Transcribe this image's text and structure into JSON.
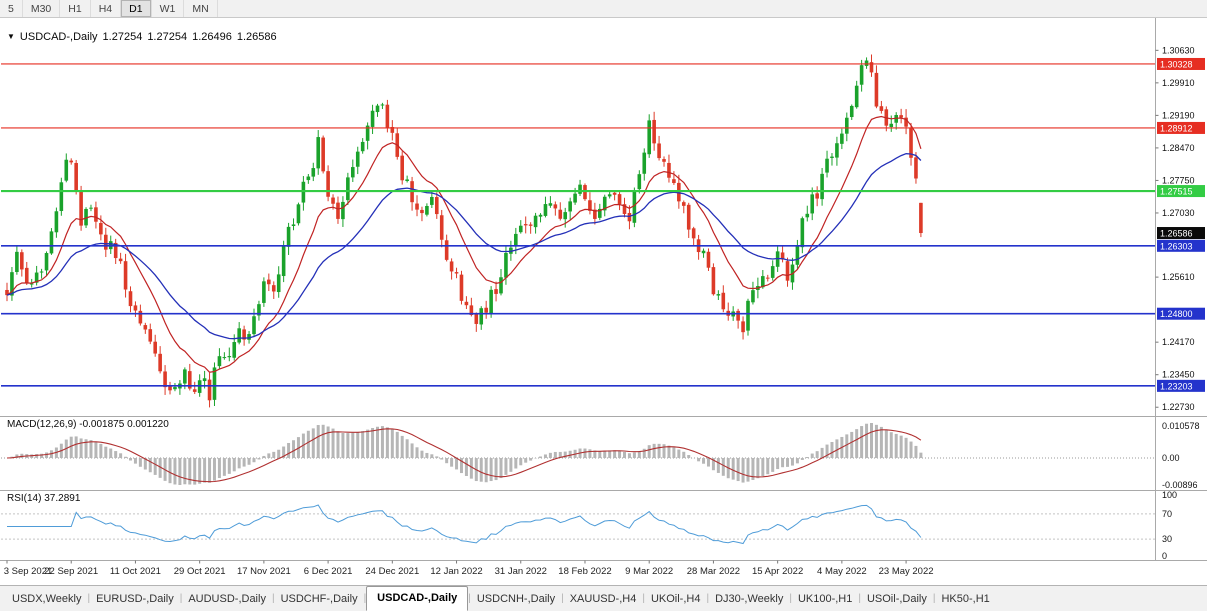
{
  "toolbar": {
    "period_buttons": [
      "5",
      "M30",
      "H1",
      "H4",
      "D1",
      "W1",
      "MN"
    ],
    "active_period": "D1"
  },
  "chart_header": {
    "collapse_icon": "▼",
    "symbol": "USDCAD-,Daily",
    "open": "1.27254",
    "high": "1.27254",
    "low": "1.26496",
    "close": "1.26586"
  },
  "price_axis": {
    "labels": [
      "1.30630",
      "1.29910",
      "1.29190",
      "1.28470",
      "1.27750",
      "1.27030",
      "1.25610",
      "1.24170",
      "1.23450",
      "1.22730"
    ],
    "range_top": 1.3108,
    "range_bottom": 1.2258
  },
  "levels": [
    {
      "price": 1.30328,
      "label": "1.30328",
      "color": "#e62e22",
      "width": 1.1
    },
    {
      "price": 1.28912,
      "label": "1.28912",
      "color": "#e62e22",
      "width": 1.1
    },
    {
      "price": 1.27515,
      "label": "1.27515",
      "color": "#33cc44",
      "width": 2.2
    },
    {
      "price": 1.26303,
      "label": "1.26303",
      "color": "#2433cc",
      "width": 1.6
    },
    {
      "price": 1.248,
      "label": "1.24800",
      "color": "#2433cc",
      "width": 1.6
    },
    {
      "price": 1.23203,
      "label": "1.23203",
      "color": "#2433cc",
      "width": 1.6
    }
  ],
  "current_price": {
    "value": 1.26586,
    "label": "1.26586",
    "badge_color": "#0a0a0a"
  },
  "macd_panel": {
    "header": "MACD(12,26,9) -0.001875 0.001220",
    "axis_labels": [
      "0.010578",
      "0.00",
      "-0.00896"
    ]
  },
  "rsi_panel": {
    "header": "RSI(14) 37.2891",
    "axis_labels": [
      "100",
      "70",
      "30",
      "0"
    ],
    "levels": [
      70,
      30
    ]
  },
  "date_axis": [
    "3 Sep 2021",
    "22 Sep 2021",
    "11 Oct 2021",
    "29 Oct 2021",
    "17 Nov 2021",
    "6 Dec 2021",
    "24 Dec 2021",
    "12 Jan 2022",
    "31 Jan 2022",
    "18 Feb 2022",
    "9 Mar 2022",
    "28 Mar 2022",
    "15 Apr 2022",
    "4 May 2022",
    "23 May 2022"
  ],
  "tabs": {
    "items": [
      "USDX,Weekly",
      "EURUSD-,Daily",
      "AUDUSD-,Daily",
      "USDCHF-,Daily",
      "USDCAD-,Daily",
      "USDCNH-,Daily",
      "XAUUSD-,H4",
      "UKOil-,H4",
      "DJ30-,Weekly",
      "UK100-,H1",
      "USOil-,Daily",
      "HK50-,H1"
    ],
    "active": "USDCAD-,Daily"
  },
  "colors": {
    "bull": "#1aa22b",
    "bear": "#dd3a28",
    "ma_fast": "#c02323",
    "ma_slow": "#2430b8",
    "macd_hist": "#b6b6b6",
    "macd_signal": "#b03030",
    "rsi_line": "#4f9cd8",
    "panel_border": "#a9a9a9"
  },
  "chart_data": {
    "type": "candlestick",
    "title": "USDCAD-,Daily",
    "num_candles": 186,
    "days_per_date_tick": 13,
    "y_axis_range": [
      1.2258,
      1.3108
    ],
    "current_ohlc": {
      "open": 1.27254,
      "high": 1.27254,
      "low": 1.26496,
      "close": 1.26586
    },
    "horizontal_levels": [
      1.30328,
      1.28912,
      1.27515,
      1.26303,
      1.248,
      1.23203
    ],
    "price_path_waypoints": [
      [
        0,
        1.2535
      ],
      [
        2,
        1.2615
      ],
      [
        4,
        1.2545
      ],
      [
        7,
        1.259
      ],
      [
        9,
        1.2665
      ],
      [
        11,
        1.278
      ],
      [
        13,
        1.283
      ],
      [
        15,
        1.269
      ],
      [
        17,
        1.2725
      ],
      [
        19,
        1.264
      ],
      [
        22,
        1.261
      ],
      [
        26,
        1.2485
      ],
      [
        29,
        1.241
      ],
      [
        32,
        1.233
      ],
      [
        34,
        1.23
      ],
      [
        36,
        1.235
      ],
      [
        38,
        1.2295
      ],
      [
        39,
        1.2345
      ],
      [
        41,
        1.23
      ],
      [
        43,
        1.2405
      ],
      [
        45,
        1.238
      ],
      [
        47,
        1.245
      ],
      [
        49,
        1.2415
      ],
      [
        52,
        1.255
      ],
      [
        54,
        1.2515
      ],
      [
        56,
        1.262
      ],
      [
        58,
        1.269
      ],
      [
        60,
        1.2755
      ],
      [
        62,
        1.282
      ],
      [
        63,
        1.285
      ],
      [
        65,
        1.276
      ],
      [
        67,
        1.2705
      ],
      [
        69,
        1.279
      ],
      [
        71,
        1.285
      ],
      [
        73,
        1.2895
      ],
      [
        75,
        1.2945
      ],
      [
        76,
        1.2955
      ],
      [
        78,
        1.2865
      ],
      [
        80,
        1.279
      ],
      [
        82,
        1.2735
      ],
      [
        84,
        1.2695
      ],
      [
        86,
        1.273
      ],
      [
        88,
        1.265
      ],
      [
        90,
        1.258
      ],
      [
        91,
        1.255
      ],
      [
        93,
        1.249
      ],
      [
        95,
        1.2455
      ],
      [
        97,
        1.249
      ],
      [
        99,
        1.2545
      ],
      [
        101,
        1.261
      ],
      [
        103,
        1.266
      ],
      [
        104,
        1.2695
      ],
      [
        106,
        1.266
      ],
      [
        108,
        1.272
      ],
      [
        110,
        1.2735
      ],
      [
        112,
        1.2685
      ],
      [
        114,
        1.271
      ],
      [
        116,
        1.2745
      ],
      [
        118,
        1.2705
      ],
      [
        120,
        1.269
      ],
      [
        122,
        1.2755
      ],
      [
        124,
        1.2715
      ],
      [
        126,
        1.27
      ],
      [
        128,
        1.279
      ],
      [
        130,
        1.289
      ],
      [
        131,
        1.2855
      ],
      [
        133,
        1.28
      ],
      [
        135,
        1.2755
      ],
      [
        137,
        1.27
      ],
      [
        139,
        1.265
      ],
      [
        141,
        1.26
      ],
      [
        143,
        1.2545
      ],
      [
        145,
        1.25
      ],
      [
        147,
        1.247
      ],
      [
        149,
        1.246
      ],
      [
        151,
        1.252
      ],
      [
        153,
        1.2555
      ],
      [
        156,
        1.261
      ],
      [
        158,
        1.2575
      ],
      [
        160,
        1.264
      ],
      [
        162,
        1.2705
      ],
      [
        164,
        1.275
      ],
      [
        166,
        1.2805
      ],
      [
        168,
        1.285
      ],
      [
        169,
        1.2865
      ],
      [
        171,
        1.294
      ],
      [
        173,
        1.302
      ],
      [
        174,
        1.3055
      ],
      [
        175,
        1.301
      ],
      [
        176,
        1.296
      ],
      [
        178,
        1.2895
      ],
      [
        180,
        1.293
      ],
      [
        182,
        1.288
      ],
      [
        183,
        1.2835
      ],
      [
        184,
        1.2765
      ],
      [
        185,
        1.26586
      ]
    ],
    "indicators": [
      {
        "name": "MACD",
        "params": [
          12,
          26,
          9
        ],
        "current_values": [
          -0.001875,
          0.00122
        ]
      },
      {
        "name": "RSI",
        "params": [
          14
        ],
        "current_value": 37.2891
      },
      {
        "name": "MA-fast",
        "color": "red"
      },
      {
        "name": "MA-slow",
        "color": "blue"
      }
    ]
  }
}
